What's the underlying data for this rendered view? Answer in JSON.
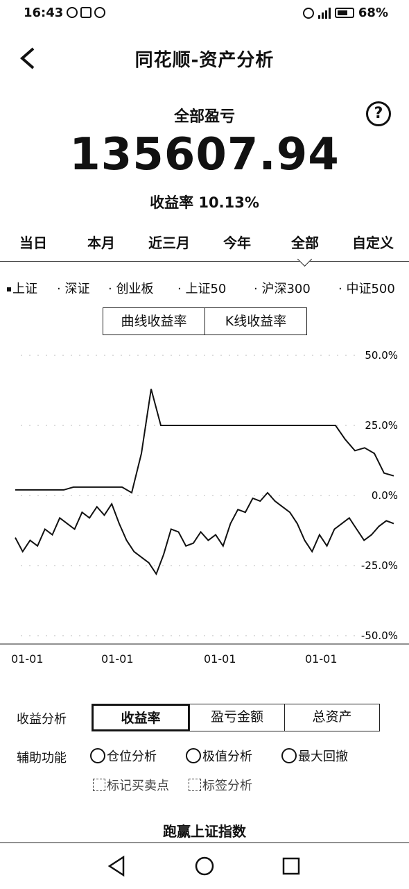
{
  "status": {
    "time": "16:43",
    "battery": "68%"
  },
  "header": {
    "title": "同花顺-资产分析"
  },
  "summary": {
    "label": "全部盈亏",
    "value": "135607.94",
    "yield_text": "收益率 10.13%"
  },
  "periods": [
    "当日",
    "本月",
    "近三月",
    "今年",
    "全部",
    "自定义"
  ],
  "selected_period": "全部",
  "indices": [
    "上证",
    "深证",
    "创业板",
    "上证50",
    "沪深300",
    "中证500"
  ],
  "chart_modes": [
    "曲线收益率",
    "K线收益率"
  ],
  "chart_data": {
    "type": "line",
    "ylim": [
      -50,
      50
    ],
    "y_ticks": [
      "50.0%",
      "25.0%",
      "0.0%",
      "-25.0%",
      "-50.0%"
    ],
    "x_ticks": [
      "01-01",
      "01-01",
      "01-01",
      "01-01"
    ],
    "series": [
      {
        "values": [
          2,
          2,
          2,
          2,
          2,
          2,
          3,
          3,
          3,
          3,
          3,
          3,
          1,
          15,
          38,
          25,
          25,
          25,
          25,
          25,
          25,
          25,
          25,
          25,
          25,
          25,
          25,
          25,
          25,
          25,
          25,
          25,
          25,
          25,
          20,
          16,
          17,
          15,
          8,
          7
        ]
      },
      {
        "values": [
          -15,
          -20,
          -16,
          -18,
          -12,
          -14,
          -8,
          -10,
          -12,
          -6,
          -8,
          -4,
          -7,
          -3,
          -10,
          -16,
          -20,
          -22,
          -24,
          -28,
          -21,
          -12,
          -13,
          -18,
          -17,
          -13,
          -16,
          -14,
          -18,
          -10,
          -5,
          -6,
          -1,
          -2,
          1,
          -2,
          -4,
          -6,
          -10,
          -16,
          -20,
          -14,
          -18,
          -12,
          -10,
          -8,
          -12,
          -16,
          -14,
          -11,
          -9,
          -10
        ]
      }
    ]
  },
  "analysis": {
    "label": "收益分析",
    "options": [
      "收益率",
      "盈亏金额",
      "总资产"
    ],
    "selected": "收益率"
  },
  "aux": {
    "label": "辅助功能",
    "options": [
      "仓位分析",
      "极值分析",
      "最大回撤"
    ],
    "extra": [
      "标记买卖点",
      "标签分析"
    ]
  },
  "footer": {
    "runwin": "跑赢上证指数"
  }
}
